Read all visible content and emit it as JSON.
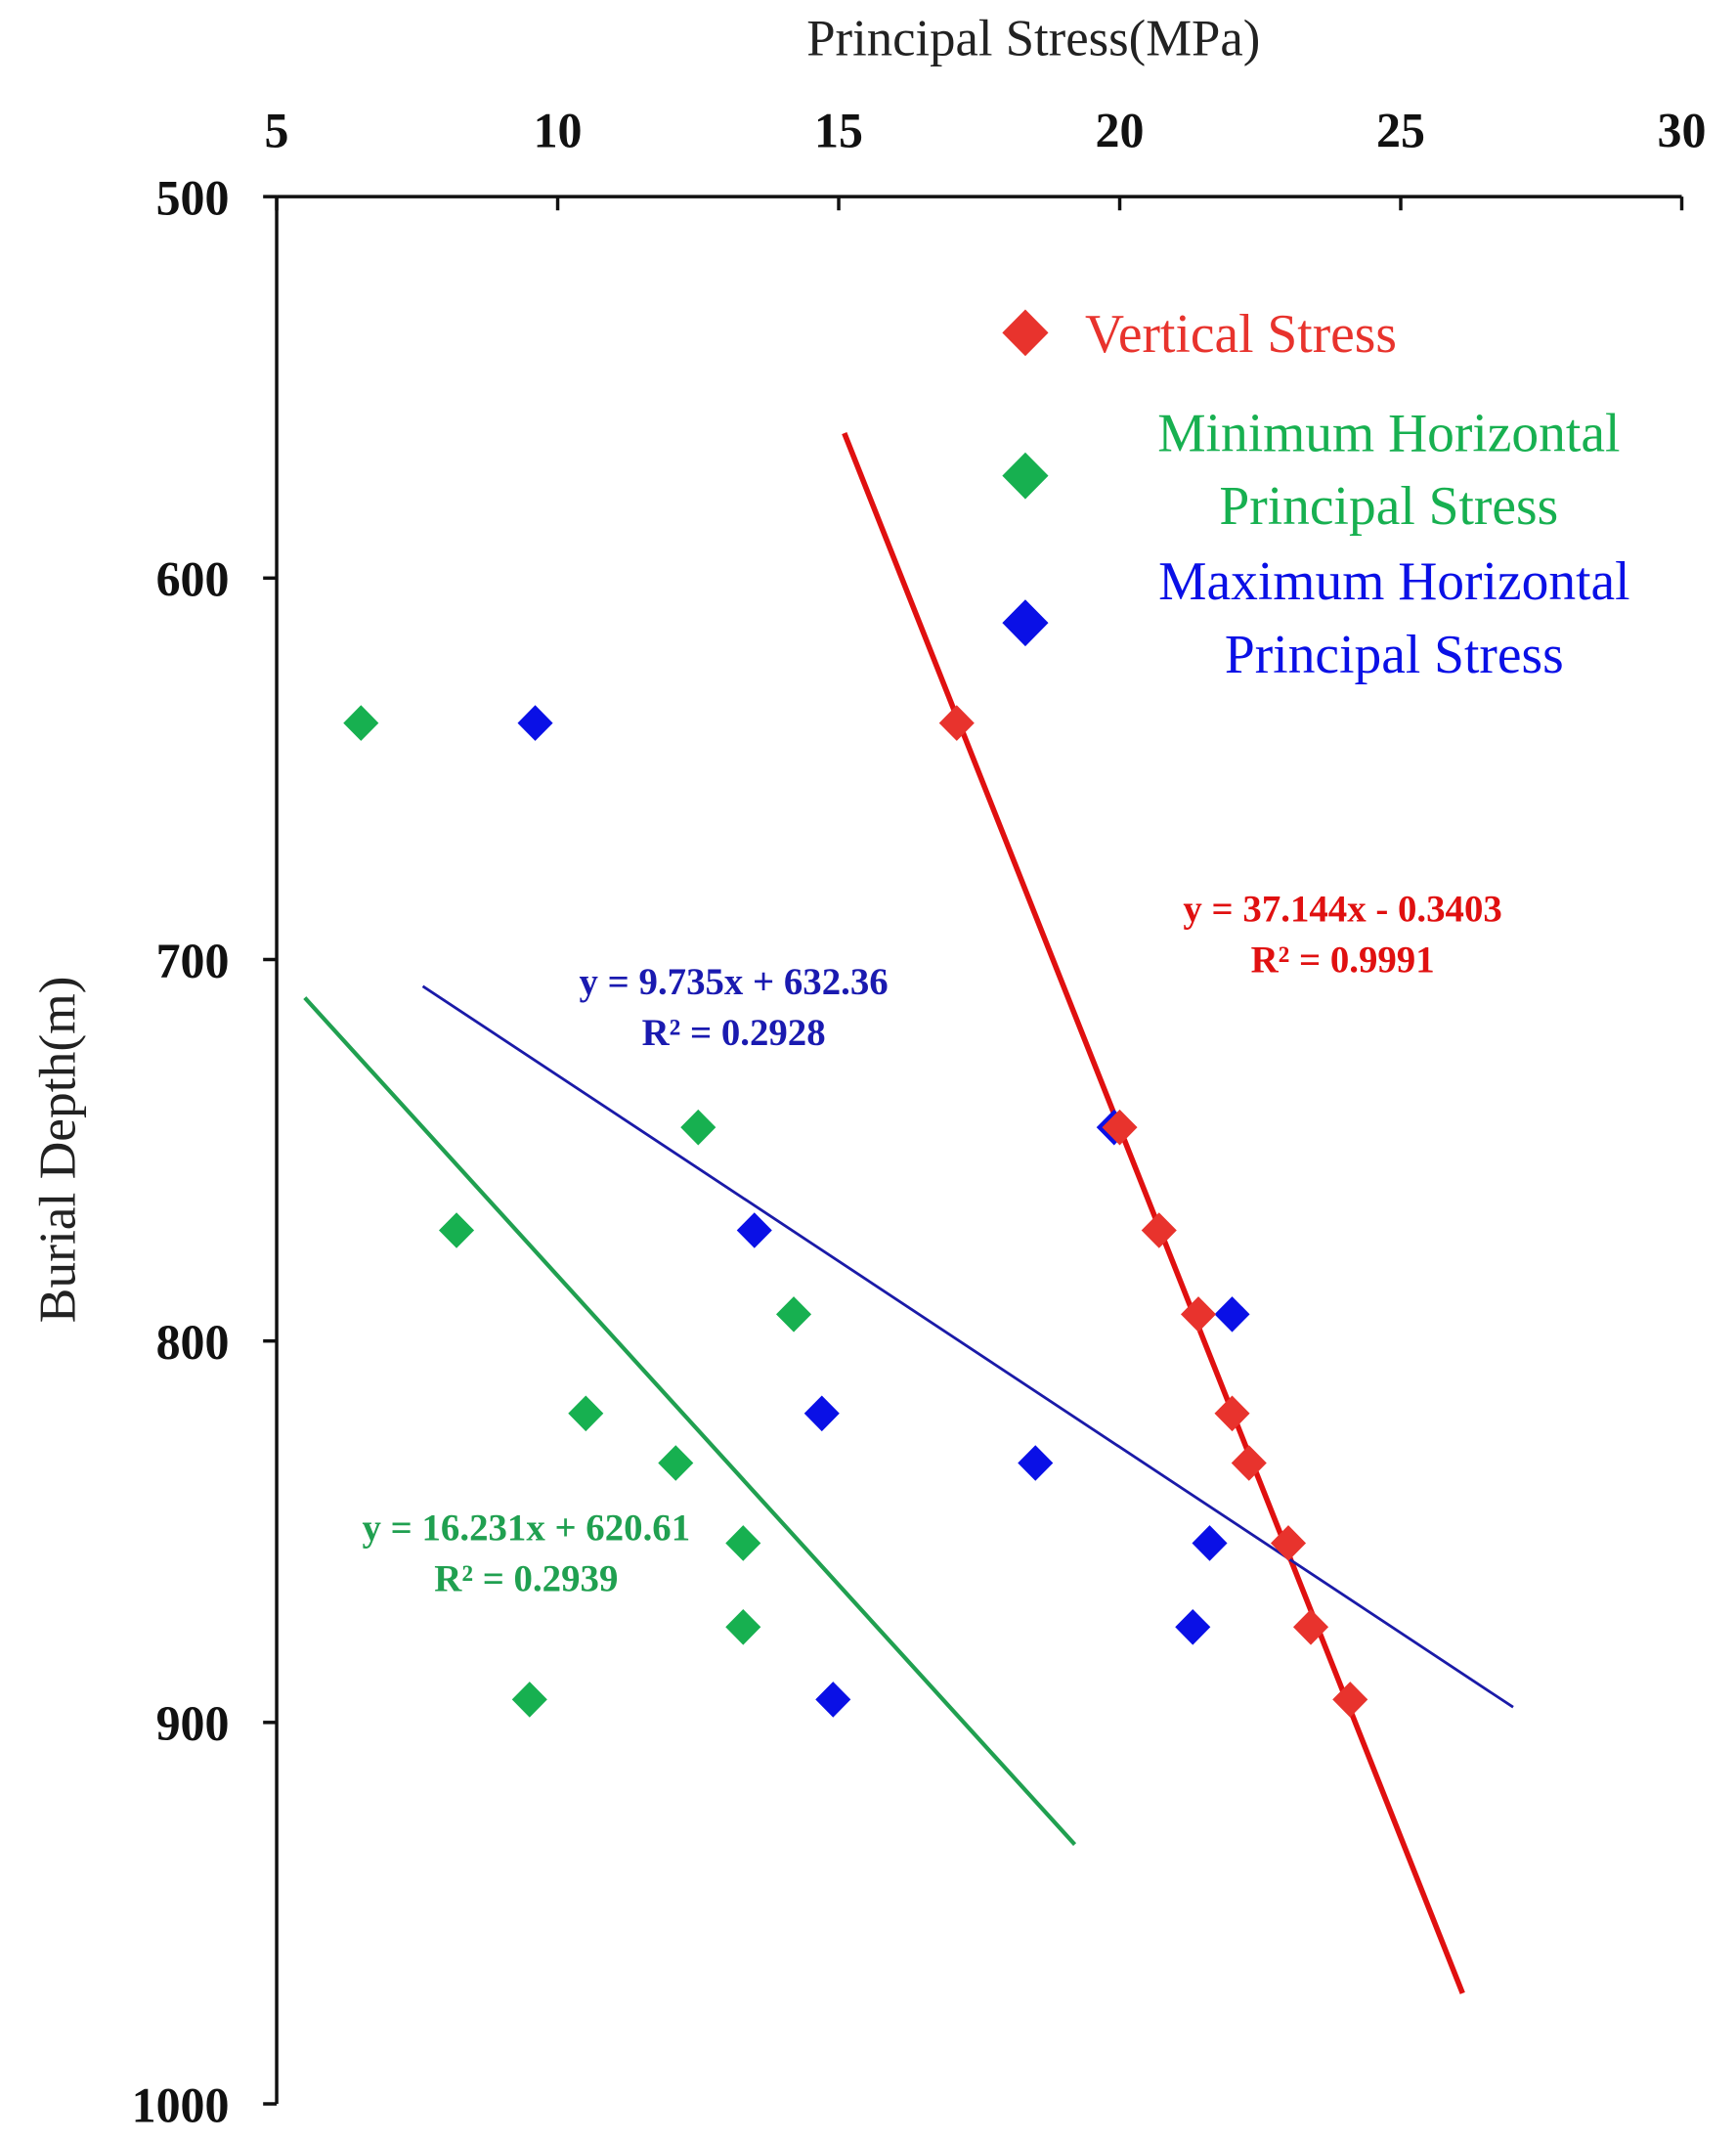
{
  "chart_data": {
    "type": "scatter",
    "xlabel": "Principal Stress(MPa)",
    "ylabel": "Burial Depth(m)",
    "xlim": [
      5,
      30
    ],
    "ylim": [
      500,
      1000
    ],
    "y_inverted": true,
    "x_axis_position": "top",
    "grid": false,
    "legend_placement": "top-right",
    "xticks": [
      5,
      10,
      15,
      20,
      25,
      30
    ],
    "yticks": [
      500,
      600,
      700,
      800,
      900,
      1000
    ],
    "series": [
      {
        "name": "Vertical Stress",
        "color": "#e8332d",
        "line_color": "#e01010",
        "marker": "diamond",
        "points": [
          [
            17.1,
            638
          ],
          [
            20.0,
            744
          ],
          [
            20.7,
            771
          ],
          [
            21.4,
            793
          ],
          [
            22.0,
            819
          ],
          [
            22.3,
            832
          ],
          [
            23.0,
            853
          ],
          [
            23.4,
            875
          ],
          [
            24.1,
            894
          ]
        ],
        "trendline": {
          "x": [
            15.1,
            26.1
          ],
          "y": [
            562,
            971
          ],
          "equation": "y = 37.144x - 0.3403",
          "r2": "R² = 0.9991"
        }
      },
      {
        "name": "Minimum Horizontal Principal Stress",
        "name_lines": [
          "Minimum Horizontal",
          "Principal Stress"
        ],
        "color": "#17b050",
        "line_color": "#20a050",
        "marker": "diamond",
        "points": [
          [
            6.5,
            638
          ],
          [
            12.5,
            744
          ],
          [
            8.2,
            771
          ],
          [
            14.2,
            793
          ],
          [
            10.5,
            819
          ],
          [
            12.1,
            832
          ],
          [
            13.3,
            853
          ],
          [
            13.3,
            875
          ],
          [
            9.5,
            894
          ]
        ],
        "trendline": {
          "x": [
            5.5,
            19.2
          ],
          "y": [
            710,
            932
          ],
          "equation": "y = 16.231x + 620.61",
          "r2": "R² = 0.2939"
        }
      },
      {
        "name": "Maximum Horizontal Principal Stress",
        "name_lines": [
          "Maximum Horizontal",
          "Principal Stress"
        ],
        "color": "#0a10e6",
        "line_color": "#1a1aa8",
        "marker": "diamond",
        "points": [
          [
            9.6,
            638
          ],
          [
            19.9,
            744
          ],
          [
            13.5,
            771
          ],
          [
            22.0,
            793
          ],
          [
            14.7,
            819
          ],
          [
            18.5,
            832
          ],
          [
            21.6,
            853
          ],
          [
            21.3,
            875
          ],
          [
            14.9,
            894
          ]
        ],
        "trendline": {
          "x": [
            7.6,
            27.0
          ],
          "y": [
            707,
            896
          ],
          "equation": "y = 9.735x + 632.36",
          "r2": "R² = 0.2928"
        }
      }
    ]
  }
}
